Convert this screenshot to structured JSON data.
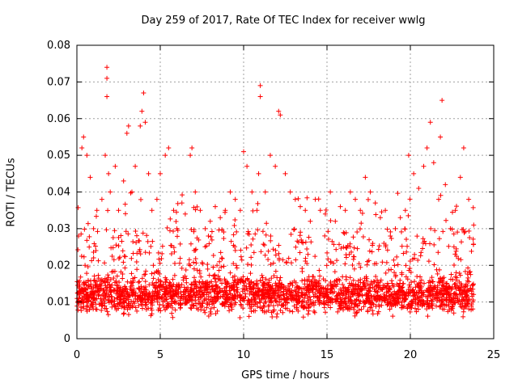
{
  "chart_data": {
    "type": "scatter",
    "title": "Day 259 of 2017, Rate Of TEC Index for receiver wwlg",
    "xlabel": "GPS time / hours",
    "ylabel": "ROTI / TECUs",
    "xlim": [
      0,
      25
    ],
    "ylim": [
      0,
      0.08
    ],
    "xticks": [
      "0",
      "5",
      "10",
      "15",
      "20",
      "25"
    ],
    "yticks": [
      "0",
      "0.01",
      "0.02",
      "0.03",
      "0.04",
      "0.05",
      "0.06",
      "0.07",
      "0.08"
    ],
    "grid": true,
    "marker": "+",
    "color": "#ff0000",
    "series": [
      {
        "name": "ROTI",
        "x": [
          0.1,
          0.3,
          0.4,
          0.6,
          0.8,
          1.0,
          1.2,
          1.5,
          1.7,
          1.8,
          1.8,
          1.8,
          1.9,
          2.0,
          2.3,
          2.5,
          2.8,
          3.0,
          3.1,
          3.3,
          3.5,
          3.8,
          3.9,
          4.0,
          4.1,
          4.3,
          4.5,
          4.8,
          5.0,
          5.3,
          5.5,
          5.8,
          6.0,
          6.3,
          6.5,
          6.8,
          6.9,
          7.1,
          7.4,
          7.7,
          8.0,
          8.3,
          8.6,
          8.9,
          9.2,
          9.5,
          9.8,
          10.0,
          10.2,
          10.5,
          10.8,
          10.9,
          11.0,
          11.0,
          11.3,
          11.6,
          11.9,
          12.1,
          12.2,
          12.5,
          12.8,
          13.1,
          13.4,
          13.7,
          14.0,
          14.3,
          14.6,
          14.9,
          15.2,
          15.5,
          15.8,
          16.1,
          16.4,
          16.7,
          17.0,
          17.3,
          17.6,
          17.9,
          18.2,
          18.5,
          18.8,
          19.1,
          19.4,
          19.7,
          19.9,
          20.2,
          20.5,
          20.8,
          21.0,
          21.2,
          21.4,
          21.7,
          21.8,
          21.9,
          22.1,
          22.4,
          22.7,
          23.0,
          23.2,
          23.5,
          23.8
        ],
        "y": [
          0.028,
          0.052,
          0.055,
          0.05,
          0.044,
          0.03,
          0.035,
          0.038,
          0.05,
          0.066,
          0.071,
          0.074,
          0.045,
          0.04,
          0.047,
          0.035,
          0.043,
          0.056,
          0.058,
          0.04,
          0.047,
          0.058,
          0.062,
          0.067,
          0.059,
          0.045,
          0.035,
          0.038,
          0.045,
          0.05,
          0.052,
          0.035,
          0.03,
          0.037,
          0.034,
          0.05,
          0.052,
          0.04,
          0.035,
          0.03,
          0.032,
          0.036,
          0.033,
          0.035,
          0.04,
          0.038,
          0.035,
          0.051,
          0.047,
          0.04,
          0.035,
          0.045,
          0.066,
          0.069,
          0.04,
          0.05,
          0.047,
          0.062,
          0.061,
          0.045,
          0.04,
          0.038,
          0.036,
          0.035,
          0.032,
          0.038,
          0.035,
          0.034,
          0.04,
          0.032,
          0.036,
          0.035,
          0.04,
          0.038,
          0.035,
          0.044,
          0.04,
          0.037,
          0.033,
          0.035,
          0.028,
          0.03,
          0.033,
          0.035,
          0.05,
          0.045,
          0.041,
          0.047,
          0.052,
          0.059,
          0.048,
          0.038,
          0.055,
          0.065,
          0.042,
          0.03,
          0.035,
          0.044,
          0.052,
          0.038,
          0.031
        ]
      }
    ]
  }
}
